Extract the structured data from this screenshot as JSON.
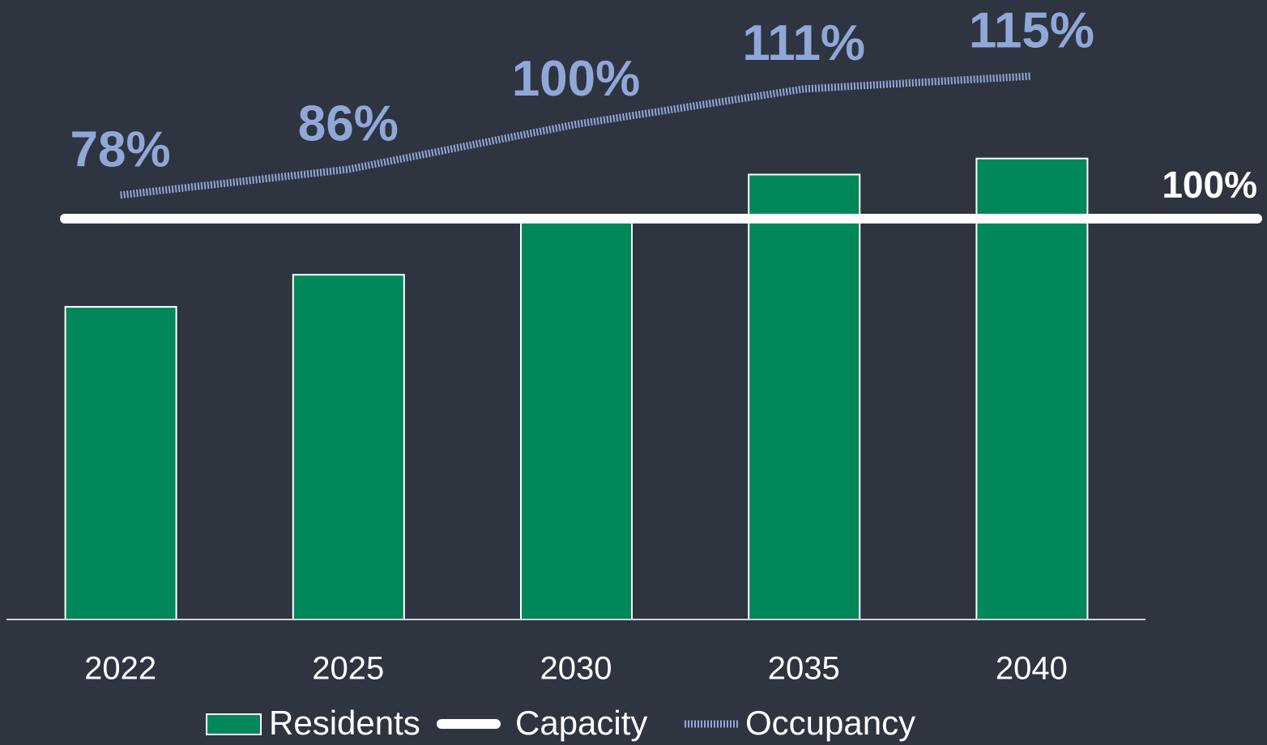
{
  "chart_data": {
    "type": "bar",
    "categories": [
      "2022",
      "2025",
      "2030",
      "2035",
      "2040"
    ],
    "ylim": [
      0,
      150
    ],
    "y2lim": [
      -54,
      133
    ],
    "series": [
      {
        "name": "Residents",
        "type": "bar",
        "color": "#00875a",
        "values": [
          78,
          86,
          100,
          111,
          115
        ]
      },
      {
        "name": "Capacity",
        "type": "line",
        "color": "#ffffff",
        "values": [
          100,
          100,
          100,
          100,
          100
        ],
        "value_labels": [
          null,
          null,
          null,
          null,
          "100%"
        ]
      },
      {
        "name": "Occupancy",
        "type": "line",
        "axis": "y2",
        "color": "#8fa8d8",
        "values": [
          78,
          86,
          100,
          111,
          115
        ],
        "value_labels": [
          "78%",
          "86%",
          "100%",
          "111%",
          "115%"
        ]
      }
    ]
  }
}
